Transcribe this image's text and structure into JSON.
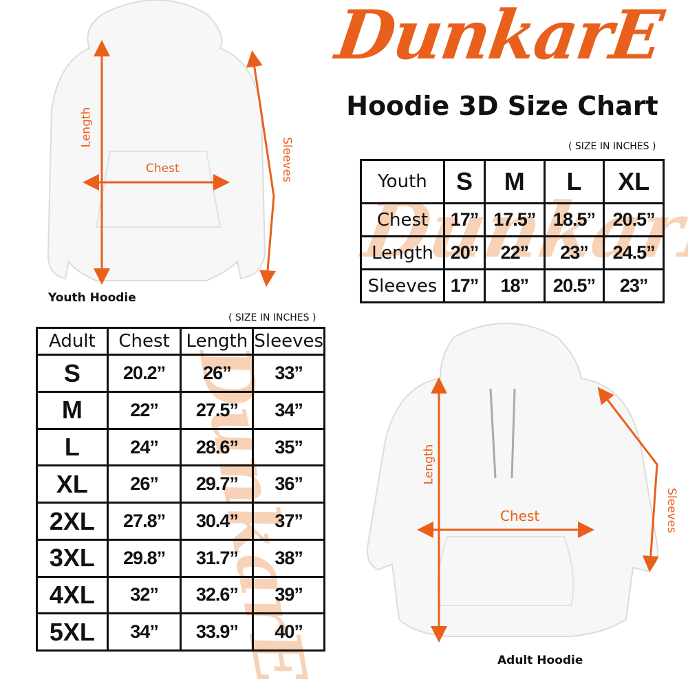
{
  "brand": {
    "logo_text": "DunkarE",
    "color": "#e8601c",
    "watermark_color": "#f5c4a0"
  },
  "title": "Hoodie 3D Size Chart",
  "youth": {
    "caption": "Youth Hoodie",
    "labels": {
      "length": "Length",
      "chest": "Chest",
      "sleeves": "Sleeves"
    },
    "unit_note": "( SIZE IN INCHES )",
    "corner": "Youth",
    "sizes": [
      "S",
      "M",
      "L",
      "XL"
    ],
    "rows": [
      {
        "label": "Chest",
        "values": [
          "17”",
          "17.5”",
          "18.5”",
          "20.5”"
        ]
      },
      {
        "label": "Length",
        "values": [
          "20”",
          "22”",
          "23”",
          "24.5”"
        ]
      },
      {
        "label": "Sleeves",
        "values": [
          "17”",
          "18”",
          "20.5”",
          "23”"
        ]
      }
    ]
  },
  "adult": {
    "caption": "Adult Hoodie",
    "labels": {
      "length": "Length",
      "chest": "Chest",
      "sleeves": "Sleeves"
    },
    "unit_note": "( SIZE IN INCHES )",
    "headers": [
      "Adult",
      "Chest",
      "Length",
      "Sleeves"
    ],
    "rows": [
      {
        "size": "S",
        "values": [
          "20.2”",
          "26”",
          "33”"
        ]
      },
      {
        "size": "M",
        "values": [
          "22”",
          "27.5”",
          "34”"
        ]
      },
      {
        "size": "L",
        "values": [
          "24”",
          "28.6”",
          "35”"
        ]
      },
      {
        "size": "XL",
        "values": [
          "26”",
          "29.7”",
          "36”"
        ]
      },
      {
        "size": "2XL",
        "values": [
          "27.8”",
          "30.4”",
          "37”"
        ]
      },
      {
        "size": "3XL",
        "values": [
          "29.8”",
          "31.7”",
          "38”"
        ]
      },
      {
        "size": "4XL",
        "values": [
          "32”",
          "32.6”",
          "39”"
        ]
      },
      {
        "size": "5XL",
        "values": [
          "34”",
          "33.9”",
          "40”"
        ]
      }
    ]
  }
}
